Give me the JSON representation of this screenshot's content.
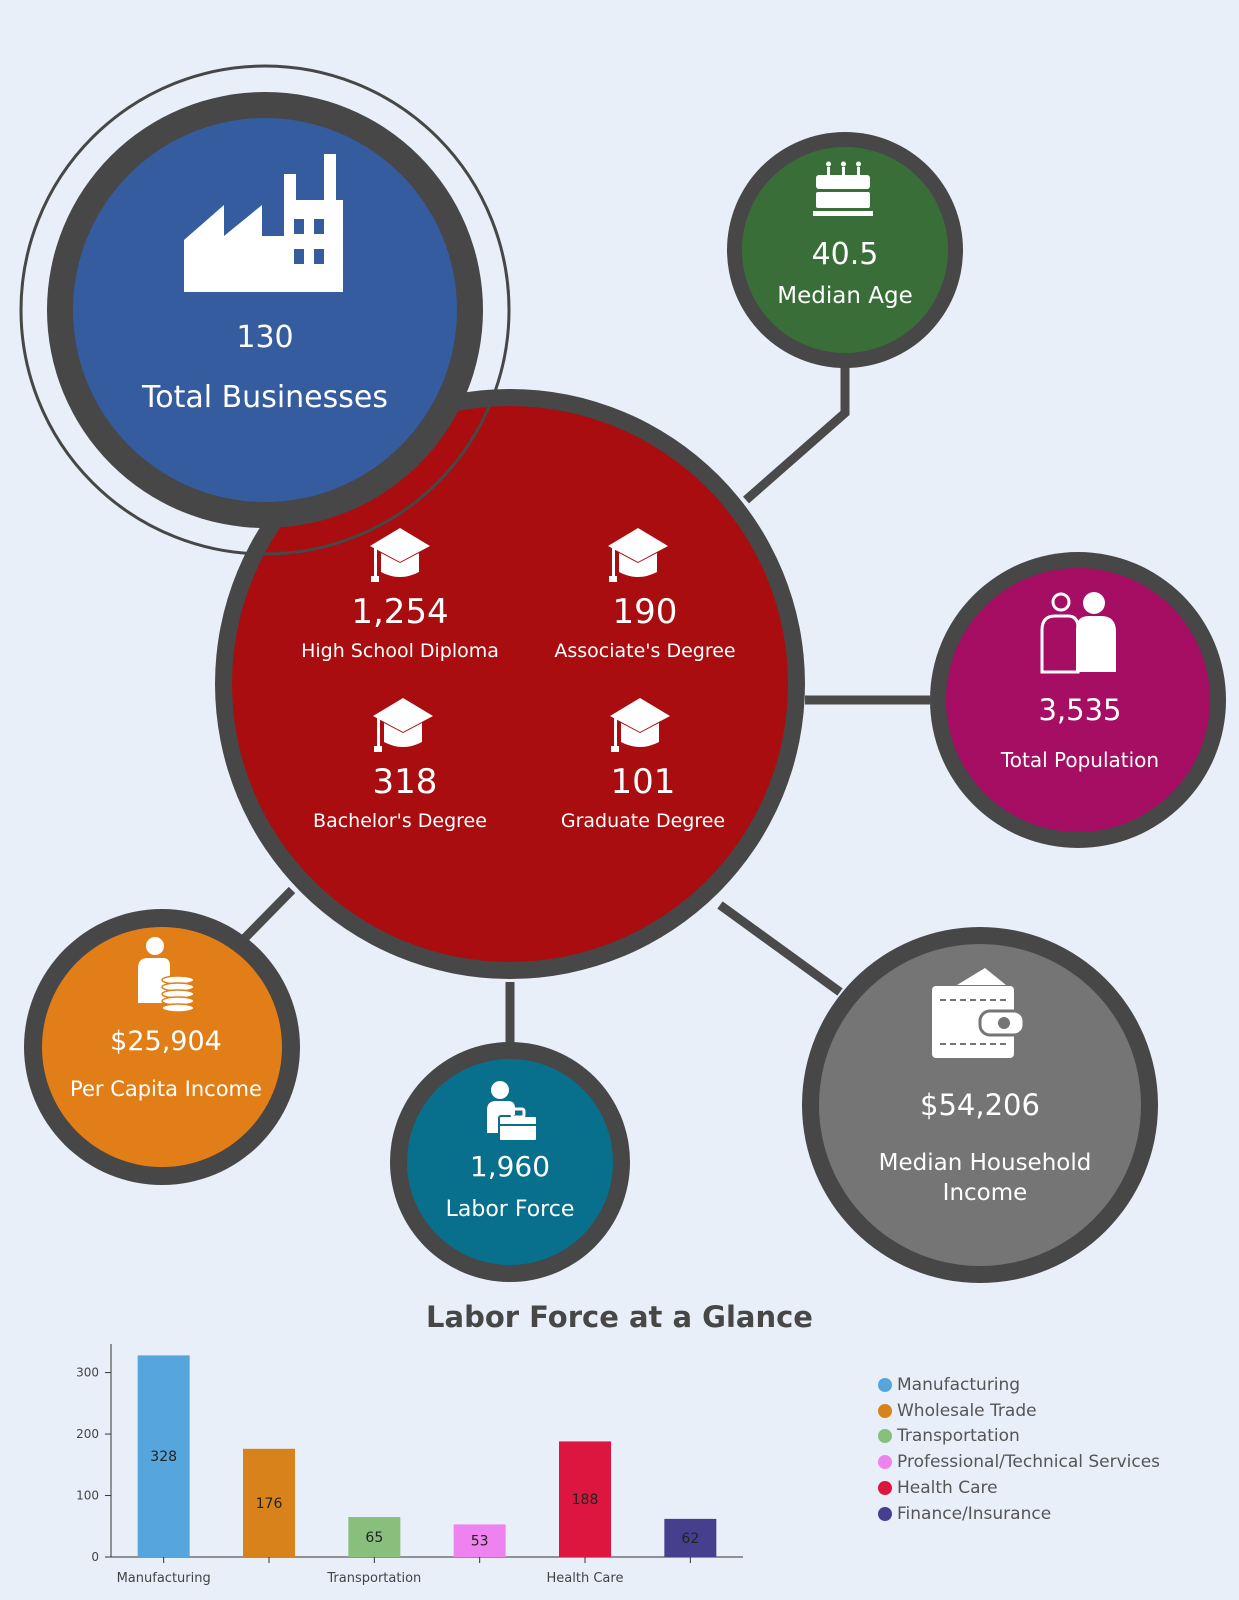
{
  "stats": {
    "businesses": {
      "value": "130",
      "label": "Total Businesses",
      "color": "#345c9e"
    },
    "median_age": {
      "value": "40.5",
      "label": "Median Age",
      "color": "#3a6e39"
    },
    "education": {
      "color": "#a90d10",
      "items": [
        {
          "value": "1,254",
          "label": "High School Diploma"
        },
        {
          "value": "190",
          "label": "Associate's Degree"
        },
        {
          "value": "318",
          "label": "Bachelor's Degree"
        },
        {
          "value": "101",
          "label": "Graduate Degree"
        }
      ]
    },
    "population": {
      "value": "3,535",
      "label": "Total Population",
      "color": "#a50e62"
    },
    "per_capita": {
      "value": "$25,904",
      "label": "Per Capita Income",
      "color": "#e27e17"
    },
    "labor_force": {
      "value": "1,960",
      "label": "Labor Force",
      "color": "#086f8c"
    },
    "household": {
      "value": "$54,206",
      "label_line1": "Median Household",
      "label_line2": "Income",
      "color": "#757575"
    }
  },
  "icons": [
    "factory-icon",
    "birthday-cake-icon",
    "graduation-cap-icon",
    "people-icon",
    "person-coins-icon",
    "person-briefcase-icon",
    "wallet-icon"
  ],
  "chart_data": {
    "type": "bar",
    "title": "Labor Force at a Glance",
    "categories": [
      "Manufacturing",
      "Wholesale Trade",
      "Transportation",
      "Professional/Technical Services",
      "Health Care",
      "Finance/Insurance"
    ],
    "tick_labels": [
      "Manufacturing",
      "",
      "Transportation",
      "",
      "Health Care",
      ""
    ],
    "values": [
      328,
      176,
      65,
      53,
      188,
      62
    ],
    "colors": [
      "#56a5dc",
      "#d8821c",
      "#88bf7d",
      "#ee82ee",
      "#dc163f",
      "#463f8d"
    ],
    "yticks": [
      0,
      100,
      200,
      300
    ],
    "ylim": [
      0,
      340
    ],
    "legend_position": "right"
  }
}
